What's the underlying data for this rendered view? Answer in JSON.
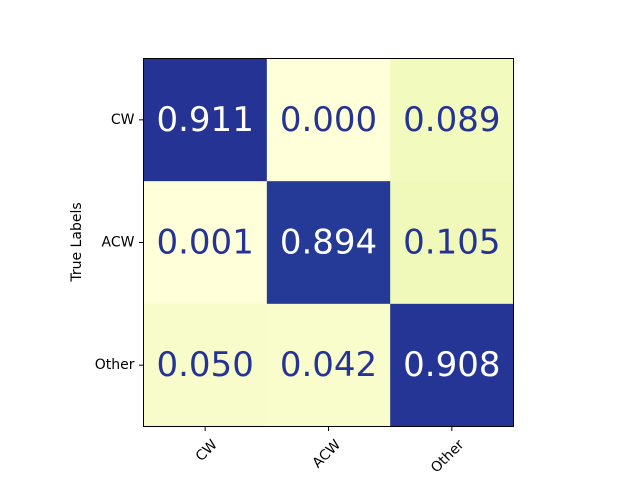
{
  "chart_data": {
    "type": "heatmap",
    "title": "",
    "xlabel": "",
    "ylabel": "True Labels",
    "x_categories": [
      "CW",
      "ACW",
      "Other"
    ],
    "y_categories": [
      "CW",
      "ACW",
      "Other"
    ],
    "values": [
      [
        0.911,
        0.0,
        0.089
      ],
      [
        0.001,
        0.894,
        0.105
      ],
      [
        0.05,
        0.042,
        0.908
      ]
    ],
    "value_labels": [
      [
        "0.911",
        "0.000",
        "0.089"
      ],
      [
        "0.001",
        "0.894",
        "0.105"
      ],
      [
        "0.050",
        "0.042",
        "0.908"
      ]
    ],
    "color_scale": "YlGnBu",
    "vmin": 0,
    "vmax": 1,
    "grid": false,
    "colorbar": false
  },
  "colors": {
    "high_cell": "#253494",
    "low_cell": "#ffffcc",
    "text_on_light": "#253494",
    "text_on_dark": "#ffffff"
  }
}
